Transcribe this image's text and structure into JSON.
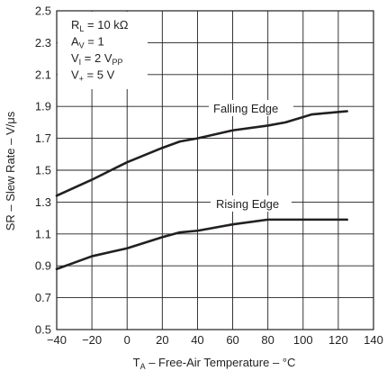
{
  "chart_data": {
    "type": "line",
    "xlabel": {
      "main": "T",
      "sub": "A",
      "rest": " – Free-Air Temperature – °C"
    },
    "ylabel": "SR – Slew Rate – V/μs",
    "xlim": [
      -40,
      140
    ],
    "ylim": [
      0.5,
      2.5
    ],
    "xticks": [
      -40,
      -20,
      0,
      20,
      40,
      60,
      80,
      100,
      120,
      140
    ],
    "yticks": [
      "0.5",
      "0.7",
      "0.9",
      "1.1",
      "1.3",
      "1.5",
      "1.7",
      "1.9",
      "2.1",
      "2.3",
      "2.5"
    ],
    "grid": true,
    "conditions": [
      {
        "main": "R",
        "sub": "L",
        "rest": " = 10 kΩ"
      },
      {
        "main": "A",
        "sub": "V",
        "rest": " = 1"
      },
      {
        "main": "V",
        "sub": "I",
        "rest": " = 2 V",
        "sub2": "PP"
      },
      {
        "main": "V",
        "sub": "+",
        "rest": "  = 5 V"
      }
    ],
    "series": [
      {
        "name": "Falling Edge",
        "x": [
          -40,
          -20,
          0,
          20,
          30,
          40,
          60,
          80,
          90,
          105,
          125
        ],
        "y": [
          1.34,
          1.44,
          1.55,
          1.64,
          1.68,
          1.7,
          1.75,
          1.78,
          1.8,
          1.85,
          1.87
        ]
      },
      {
        "name": "Rising Edge",
        "x": [
          -40,
          -30,
          -20,
          0,
          20,
          30,
          40,
          60,
          80,
          100,
          125
        ],
        "y": [
          0.88,
          0.92,
          0.96,
          1.01,
          1.08,
          1.11,
          1.12,
          1.16,
          1.19,
          1.19,
          1.19
        ]
      }
    ]
  }
}
